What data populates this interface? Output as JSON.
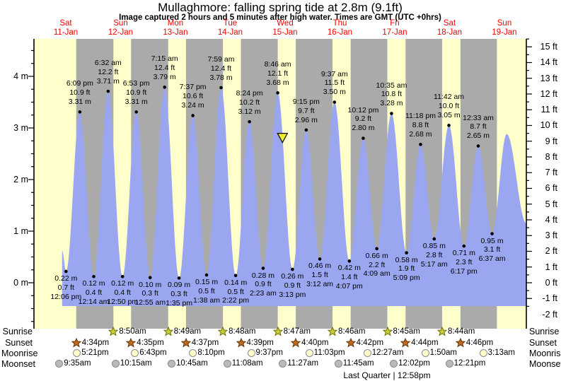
{
  "title": "Mullaghmore: falling  spring tide at 2.8m (9.1ft)",
  "subtitle": "Image captured 2 hours and 5 minutes after high water. Times are GMT (UTC +0hrs)",
  "days": [
    {
      "name": "Sat",
      "date": "11-Jan"
    },
    {
      "name": "Sun",
      "date": "12-Jan"
    },
    {
      "name": "Mon",
      "date": "13-Jan"
    },
    {
      "name": "Tue",
      "date": "14-Jan"
    },
    {
      "name": "Wed",
      "date": "15-Jan"
    },
    {
      "name": "Thu",
      "date": "16-Jan"
    },
    {
      "name": "Fri",
      "date": "17-Jan"
    },
    {
      "name": "Sat",
      "date": "18-Jan"
    },
    {
      "name": "Sun",
      "date": "19-Jan"
    }
  ],
  "chart_data": {
    "type": "area",
    "title": "Mullaghmore: falling  spring tide at 2.8m (9.1ft)",
    "ylabel_left_unit": "m",
    "ylabel_right_unit": "ft",
    "left_axis_values_m": [
      4,
      3,
      2,
      1,
      0
    ],
    "right_axis_values_ft": [
      15,
      14,
      13,
      12,
      11,
      10,
      9,
      8,
      7,
      6,
      5,
      4,
      3,
      2,
      1,
      0,
      -1,
      -2
    ],
    "tide_events": [
      {
        "day": 0,
        "type": "low",
        "time": "12:06 pm",
        "m": 0.22,
        "ft": 0.7
      },
      {
        "day": 0,
        "type": "high",
        "time": "6:09 pm",
        "m": 3.31,
        "ft": 10.9
      },
      {
        "day": 1,
        "type": "low",
        "time": "12:14 am",
        "m": 0.12,
        "ft": 0.4
      },
      {
        "day": 1,
        "type": "high",
        "time": "6:32 am",
        "m": 3.71,
        "ft": 12.2
      },
      {
        "day": 1,
        "type": "low",
        "time": "12:50 pm",
        "m": 0.12,
        "ft": 0.4
      },
      {
        "day": 1,
        "type": "high",
        "time": "6:53 pm",
        "m": 3.31,
        "ft": 10.9
      },
      {
        "day": 2,
        "type": "low",
        "time": "12:55 am",
        "m": 0.1,
        "ft": 0.3
      },
      {
        "day": 2,
        "type": "high",
        "time": "7:15 am",
        "m": 3.79,
        "ft": 12.4
      },
      {
        "day": 2,
        "type": "low",
        "time": "1:35 pm",
        "m": 0.09,
        "ft": 0.3
      },
      {
        "day": 2,
        "type": "high",
        "time": "7:37 pm",
        "m": 3.24,
        "ft": 10.6
      },
      {
        "day": 3,
        "type": "low",
        "time": "1:38 am",
        "m": 0.15,
        "ft": 0.5
      },
      {
        "day": 3,
        "type": "high",
        "time": "7:59 am",
        "m": 3.78,
        "ft": 12.4
      },
      {
        "day": 3,
        "type": "low",
        "time": "2:22 pm",
        "m": 0.14,
        "ft": 0.5
      },
      {
        "day": 3,
        "type": "high",
        "time": "8:24 pm",
        "m": 3.12,
        "ft": 10.2
      },
      {
        "day": 4,
        "type": "low",
        "time": "2:23 am",
        "m": 0.28,
        "ft": 0.9
      },
      {
        "day": 4,
        "type": "high",
        "time": "8:46 am",
        "m": 3.68,
        "ft": 12.1
      },
      {
        "day": 4,
        "type": "low",
        "time": "3:13 pm",
        "m": 0.26,
        "ft": 0.9
      },
      {
        "day": 4,
        "type": "high",
        "time": "9:15 pm",
        "m": 2.96,
        "ft": 9.7
      },
      {
        "day": 5,
        "type": "low",
        "time": "3:12 am",
        "m": 0.46,
        "ft": 1.5
      },
      {
        "day": 5,
        "type": "high",
        "time": "9:37 am",
        "m": 3.5,
        "ft": 11.5
      },
      {
        "day": 5,
        "type": "low",
        "time": "4:07 pm",
        "m": 0.42,
        "ft": 1.4
      },
      {
        "day": 5,
        "type": "high",
        "time": "10:12 pm",
        "m": 2.8,
        "ft": 9.2
      },
      {
        "day": 6,
        "type": "low",
        "time": "4:09 am",
        "m": 0.66,
        "ft": 2.2
      },
      {
        "day": 6,
        "type": "high",
        "time": "10:35 am",
        "m": 3.28,
        "ft": 10.8
      },
      {
        "day": 6,
        "type": "low",
        "time": "5:09 pm",
        "m": 0.58,
        "ft": 1.9
      },
      {
        "day": 6,
        "type": "high",
        "time": "11:18 pm",
        "m": 2.68,
        "ft": 8.8
      },
      {
        "day": 7,
        "type": "low",
        "time": "5:17 am",
        "m": 0.85,
        "ft": 2.8
      },
      {
        "day": 7,
        "type": "high",
        "time": "11:42 am",
        "m": 3.05,
        "ft": 10.0
      },
      {
        "day": 7,
        "type": "low",
        "time": "6:17 pm",
        "m": 0.71,
        "ft": 2.3
      },
      {
        "day": 8,
        "type": "high",
        "time": "12:33 am",
        "m": 2.65,
        "ft": 8.7
      },
      {
        "day": 8,
        "type": "low",
        "time": "6:37 am",
        "m": 0.95,
        "ft": 3.1
      }
    ],
    "curve_anchors": {
      "start": {
        "day": 0,
        "hour": 10.4,
        "m": 0.62
      },
      "end_peak": {
        "day": 8,
        "hour": 13.0,
        "m": 2.88
      },
      "end_edge": {
        "day": 8,
        "hour": 21.6,
        "m": 1.15
      }
    },
    "current_marker": {
      "day": 4,
      "time": "10:51 am",
      "m": 2.8
    }
  },
  "astronomy": {
    "rows": [
      {
        "id": "sunrise",
        "label": "Sunrise",
        "icon": "sunrise-star",
        "events": [
          {
            "day": 1,
            "time": "8:50am"
          },
          {
            "day": 2,
            "time": "8:49am"
          },
          {
            "day": 3,
            "time": "8:48am"
          },
          {
            "day": 4,
            "time": "8:47am"
          },
          {
            "day": 5,
            "time": "8:46am"
          },
          {
            "day": 6,
            "time": "8:45am"
          },
          {
            "day": 7,
            "time": "8:44am"
          }
        ]
      },
      {
        "id": "sunset",
        "label": "Sunset",
        "icon": "sunset-star",
        "events": [
          {
            "day": 0,
            "time": "4:34pm"
          },
          {
            "day": 1,
            "time": "4:35pm"
          },
          {
            "day": 2,
            "time": "4:37pm"
          },
          {
            "day": 3,
            "time": "4:39pm"
          },
          {
            "day": 4,
            "time": "4:40pm"
          },
          {
            "day": 5,
            "time": "4:42pm"
          },
          {
            "day": 6,
            "time": "4:44pm"
          },
          {
            "day": 7,
            "time": "4:46pm"
          }
        ]
      },
      {
        "id": "moonrise",
        "label": "Moonrise",
        "icon": "moonrise-circle",
        "events": [
          {
            "day": 0,
            "time": "5:21pm"
          },
          {
            "day": 1,
            "time": "6:43pm"
          },
          {
            "day": 2,
            "time": "8:10pm"
          },
          {
            "day": 3,
            "time": "9:37pm"
          },
          {
            "day": 4,
            "time": "11:03pm"
          },
          {
            "day": 6,
            "time": "12:27am"
          },
          {
            "day": 7,
            "time": "1:50am"
          },
          {
            "day": 8,
            "time": "3:13am"
          }
        ]
      },
      {
        "id": "moonset",
        "label": "Moonset",
        "icon": "moonset-circle",
        "events": [
          {
            "day": 0,
            "time": "9:35am"
          },
          {
            "day": 1,
            "time": "10:15am"
          },
          {
            "day": 2,
            "time": "10:45am"
          },
          {
            "day": 3,
            "time": "11:08am"
          },
          {
            "day": 4,
            "time": "11:27am"
          },
          {
            "day": 5,
            "time": "11:45am"
          },
          {
            "day": 6,
            "time": "12:02pm"
          },
          {
            "day": 7,
            "time": "12:21pm"
          }
        ]
      }
    ],
    "moon_phase": "Last Quarter | 12:58pm"
  },
  "colors": {
    "day_band": "#ffffcc",
    "night_band": "#aaaaaa",
    "tide_fill": "#9aa7f0",
    "day_label_red": "#f10000",
    "axis_black": "#000000",
    "marker_yellow": "#eded2c",
    "sunrise_star_fill": "#c6ca3b",
    "sunrise_star_stroke": "#6f7000",
    "sunset_star_fill": "#bf6a1f",
    "sunset_star_stroke": "#5f3300",
    "moonrise_fill": "#ffffcc",
    "moonset_fill": "#bababa"
  }
}
